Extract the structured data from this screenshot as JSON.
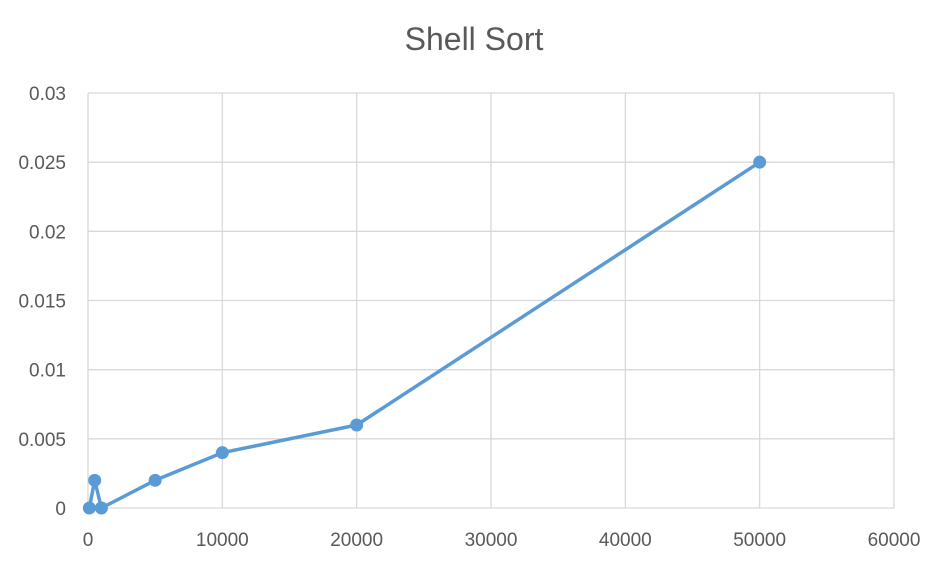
{
  "chart_data": {
    "type": "scatter",
    "title": "Shell Sort",
    "xlabel": "",
    "ylabel": "",
    "xlim": [
      0,
      60000
    ],
    "ylim": [
      0,
      0.03
    ],
    "x_ticks": [
      0,
      10000,
      20000,
      30000,
      40000,
      50000,
      60000
    ],
    "y_ticks": [
      0,
      0.005,
      0.01,
      0.015,
      0.02,
      0.025,
      0.03
    ],
    "grid": true,
    "legend": "none",
    "color": "#5b9bd5",
    "series": [
      {
        "x": [
          100,
          500,
          1000,
          5000,
          10000,
          20000,
          50000
        ],
        "y": [
          0,
          0.002,
          0,
          0.002,
          0.004,
          0.006,
          0.025
        ]
      }
    ]
  }
}
